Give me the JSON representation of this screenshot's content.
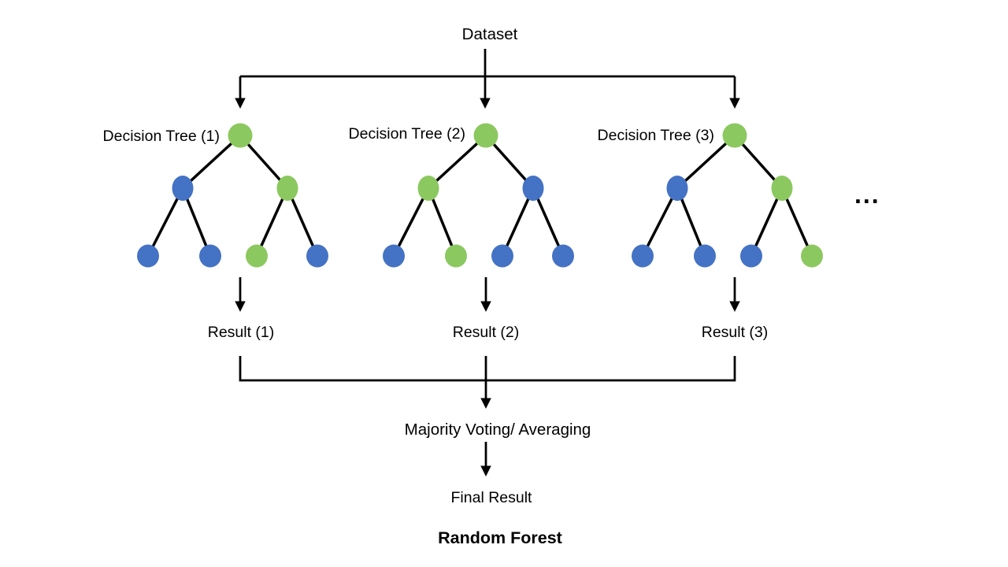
{
  "diagram_title": "Random Forest",
  "dataset_label": "Dataset",
  "ellipsis_label": "...",
  "aggregation_label": "Majority Voting/ Averaging",
  "final_result_label": "Final Result",
  "colors": {
    "green": "#8CC860",
    "blue": "#4472C4",
    "line": "#000000"
  },
  "trees": [
    {
      "label": "Decision Tree (1)",
      "result_label": "Result (1)",
      "root": "green",
      "internal": [
        "blue",
        "green"
      ],
      "leaves": [
        "blue",
        "blue",
        "green",
        "blue"
      ]
    },
    {
      "label": "Decision Tree (2)",
      "result_label": "Result (2)",
      "root": "green",
      "internal": [
        "green",
        "blue"
      ],
      "leaves": [
        "blue",
        "green",
        "blue",
        "blue"
      ]
    },
    {
      "label": "Decision Tree (3)",
      "result_label": "Result (3)",
      "root": "green",
      "internal": [
        "blue",
        "green"
      ],
      "leaves": [
        "blue",
        "blue",
        "blue",
        "green"
      ]
    }
  ]
}
